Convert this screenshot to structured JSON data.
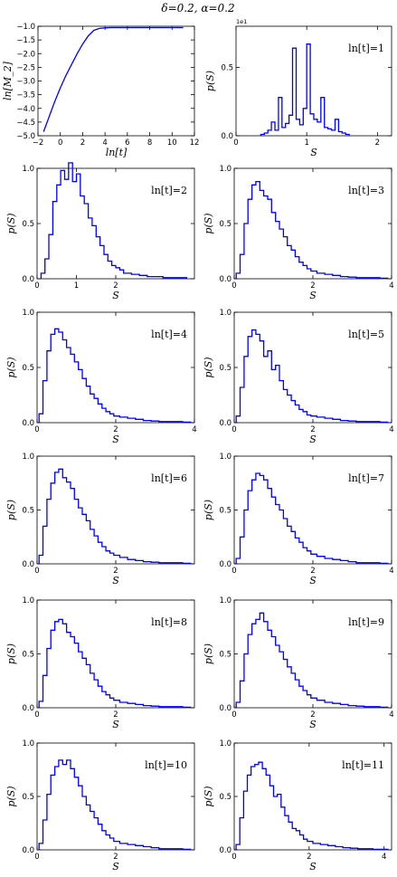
{
  "figure": {
    "title": "δ=0.2, α=0.2"
  },
  "chart_data": [
    {
      "id": "m2",
      "type": "line",
      "title": "",
      "xlabel": "ln[t]",
      "ylabel": "ln[M_2]",
      "xlim": [
        -2,
        12
      ],
      "ylim": [
        -5.0,
        -1.0
      ],
      "xticks": [
        -2,
        0,
        2,
        4,
        6,
        8,
        10,
        12
      ],
      "yticks": [
        -5.0,
        -4.5,
        -4.0,
        -3.5,
        -3.0,
        -2.5,
        -2.0,
        -1.5,
        -1.0
      ],
      "xtick_labels": [
        "−2",
        "0",
        "2",
        "4",
        "6",
        "8",
        "10",
        "12"
      ],
      "ytick_labels": [
        "−5.0",
        "−4.5",
        "−4.0",
        "−3.5",
        "−3.0",
        "−2.5",
        "−2.0",
        "−1.5",
        "−1.0"
      ],
      "series": [
        {
          "x": [
            -1.5,
            -1.0,
            -0.5,
            0.0,
            0.5,
            1.0,
            1.5,
            2.0,
            2.5,
            3.0,
            3.5,
            4.0,
            4.5,
            5.0,
            6.0,
            7.0,
            8.0,
            9.0,
            10.0,
            11.0
          ],
          "y": [
            -4.85,
            -4.3,
            -3.75,
            -3.25,
            -2.8,
            -2.4,
            -2.0,
            -1.65,
            -1.35,
            -1.15,
            -1.08,
            -1.06,
            -1.05,
            -1.05,
            -1.05,
            -1.05,
            -1.05,
            -1.05,
            -1.05,
            -1.05
          ]
        }
      ]
    },
    {
      "id": "t1",
      "type": "histogram",
      "annotation": "ln[t]=1",
      "xlabel": "S",
      "ylabel": "p(S)",
      "xlim": [
        0,
        2.2
      ],
      "ylim": [
        0,
        0.8
      ],
      "yscale_label": "1e1",
      "xticks": [
        0,
        1,
        2
      ],
      "xtick_labels": [
        "0",
        "1",
        "2"
      ],
      "yticks": [
        0.0,
        0.5
      ],
      "ytick_labels": [
        "0.0",
        "0.5"
      ],
      "bin_edges": [
        0.35,
        0.4,
        0.45,
        0.5,
        0.55,
        0.6,
        0.65,
        0.7,
        0.75,
        0.8,
        0.85,
        0.9,
        0.95,
        1.0,
        1.05,
        1.1,
        1.15,
        1.2,
        1.25,
        1.3,
        1.35,
        1.4,
        1.45,
        1.5,
        1.55,
        1.6
      ],
      "values": [
        0.01,
        0.02,
        0.04,
        0.1,
        0.04,
        0.28,
        0.06,
        0.09,
        0.15,
        0.64,
        0.12,
        0.08,
        0.2,
        0.67,
        0.16,
        0.12,
        0.1,
        0.28,
        0.06,
        0.05,
        0.04,
        0.12,
        0.03,
        0.02,
        0.01
      ]
    },
    {
      "id": "t2",
      "type": "histogram",
      "annotation": "ln[t]=2",
      "xlabel": "S",
      "ylabel": "p(S)",
      "xlim": [
        0,
        4.0
      ],
      "ylim": [
        0,
        1.0
      ],
      "xticks": [
        0,
        1,
        2
      ],
      "xtick_labels": [
        "0",
        "1",
        "2"
      ],
      "yticks": [
        0.0,
        0.5,
        1.0
      ],
      "ytick_labels": [
        "0.0",
        "0.5",
        "1.0"
      ],
      "bin_edges": [
        0.1,
        0.2,
        0.3,
        0.4,
        0.5,
        0.6,
        0.7,
        0.8,
        0.9,
        1.0,
        1.1,
        1.2,
        1.3,
        1.4,
        1.5,
        1.6,
        1.7,
        1.8,
        1.9,
        2.0,
        2.1,
        2.2,
        2.4,
        2.6,
        2.8,
        3.0,
        3.2,
        3.4,
        3.6,
        3.8
      ],
      "values": [
        0.05,
        0.18,
        0.4,
        0.7,
        0.85,
        0.98,
        0.9,
        1.05,
        0.88,
        0.95,
        0.75,
        0.68,
        0.55,
        0.48,
        0.38,
        0.3,
        0.22,
        0.16,
        0.12,
        0.1,
        0.08,
        0.05,
        0.04,
        0.03,
        0.02,
        0.02,
        0.01,
        0.01,
        0.01
      ]
    },
    {
      "id": "t3",
      "type": "histogram",
      "annotation": "ln[t]=3",
      "xlabel": "S",
      "ylabel": "p(S)",
      "xlim": [
        0,
        4.0
      ],
      "ylim": [
        0,
        1.0
      ],
      "xticks": [
        0,
        2,
        4
      ],
      "xtick_labels": [
        "0",
        "2",
        "4"
      ],
      "yticks": [
        0.0,
        0.5,
        1.0
      ],
      "ytick_labels": [
        "0.0",
        "0.5",
        "1.0"
      ],
      "bin_edges": [
        0.05,
        0.15,
        0.25,
        0.35,
        0.45,
        0.55,
        0.65,
        0.75,
        0.85,
        0.95,
        1.05,
        1.15,
        1.25,
        1.35,
        1.45,
        1.55,
        1.65,
        1.75,
        1.85,
        1.95,
        2.1,
        2.3,
        2.5,
        2.7,
        2.9,
        3.1,
        3.3,
        3.5,
        3.7,
        3.9
      ],
      "values": [
        0.05,
        0.22,
        0.5,
        0.72,
        0.85,
        0.88,
        0.8,
        0.75,
        0.72,
        0.6,
        0.52,
        0.45,
        0.38,
        0.3,
        0.26,
        0.2,
        0.15,
        0.12,
        0.09,
        0.07,
        0.05,
        0.04,
        0.03,
        0.02,
        0.015,
        0.01,
        0.01,
        0.01,
        0.005
      ]
    },
    {
      "id": "t4",
      "type": "histogram",
      "annotation": "ln[t]=4",
      "xlabel": "S",
      "ylabel": "p(S)",
      "xlim": [
        0,
        4.0
      ],
      "ylim": [
        0,
        1.0
      ],
      "xticks": [
        0,
        2,
        4
      ],
      "xtick_labels": [
        "0",
        "2",
        "4"
      ],
      "yticks": [
        0.0,
        0.5,
        1.0
      ],
      "ytick_labels": [
        "0.0",
        "0.5",
        "1.0"
      ],
      "bin_edges": [
        0.05,
        0.15,
        0.25,
        0.35,
        0.45,
        0.55,
        0.65,
        0.75,
        0.85,
        0.95,
        1.05,
        1.15,
        1.25,
        1.35,
        1.45,
        1.55,
        1.65,
        1.75,
        1.85,
        1.95,
        2.1,
        2.3,
        2.5,
        2.7,
        2.9,
        3.1,
        3.3,
        3.5,
        3.7,
        3.9
      ],
      "values": [
        0.08,
        0.38,
        0.65,
        0.8,
        0.85,
        0.82,
        0.75,
        0.68,
        0.62,
        0.55,
        0.48,
        0.4,
        0.33,
        0.26,
        0.22,
        0.17,
        0.13,
        0.1,
        0.08,
        0.06,
        0.05,
        0.04,
        0.03,
        0.02,
        0.015,
        0.01,
        0.01,
        0.01,
        0.005
      ]
    },
    {
      "id": "t5",
      "type": "histogram",
      "annotation": "ln[t]=5",
      "xlabel": "S",
      "ylabel": "p(S)",
      "xlim": [
        0,
        4.0
      ],
      "ylim": [
        0,
        1.0
      ],
      "xticks": [
        0,
        2,
        4
      ],
      "xtick_labels": [
        "0",
        "2",
        "4"
      ],
      "yticks": [
        0.0,
        0.5,
        1.0
      ],
      "ytick_labels": [
        "0.0",
        "0.5",
        "1.0"
      ],
      "bin_edges": [
        0.05,
        0.15,
        0.25,
        0.35,
        0.45,
        0.55,
        0.65,
        0.75,
        0.85,
        0.95,
        1.05,
        1.15,
        1.25,
        1.35,
        1.45,
        1.55,
        1.65,
        1.75,
        1.85,
        1.95,
        2.1,
        2.3,
        2.5,
        2.7,
        2.9,
        3.1,
        3.3,
        3.5,
        3.7,
        3.9
      ],
      "values": [
        0.06,
        0.32,
        0.6,
        0.78,
        0.84,
        0.8,
        0.74,
        0.6,
        0.65,
        0.48,
        0.52,
        0.38,
        0.3,
        0.25,
        0.2,
        0.16,
        0.12,
        0.1,
        0.07,
        0.06,
        0.05,
        0.04,
        0.03,
        0.02,
        0.015,
        0.01,
        0.01,
        0.01,
        0.005
      ]
    },
    {
      "id": "t6",
      "type": "histogram",
      "annotation": "ln[t]=6",
      "xlabel": "S",
      "ylabel": "p(S)",
      "xlim": [
        0,
        4.0
      ],
      "ylim": [
        0,
        1.0
      ],
      "xticks": [
        0,
        2
      ],
      "xtick_labels": [
        "0",
        "2"
      ],
      "yticks": [
        0.0,
        0.5,
        1.0
      ],
      "ytick_labels": [
        "0.0",
        "0.5",
        "1.0"
      ],
      "bin_edges": [
        0.05,
        0.15,
        0.25,
        0.35,
        0.45,
        0.55,
        0.65,
        0.75,
        0.85,
        0.95,
        1.05,
        1.15,
        1.25,
        1.35,
        1.45,
        1.55,
        1.65,
        1.75,
        1.85,
        1.95,
        2.1,
        2.3,
        2.5,
        2.7,
        2.9,
        3.1,
        3.3,
        3.5,
        3.7,
        3.9
      ],
      "values": [
        0.08,
        0.35,
        0.6,
        0.75,
        0.85,
        0.88,
        0.8,
        0.76,
        0.7,
        0.6,
        0.52,
        0.46,
        0.4,
        0.32,
        0.26,
        0.2,
        0.16,
        0.12,
        0.1,
        0.08,
        0.06,
        0.04,
        0.03,
        0.02,
        0.015,
        0.01,
        0.01,
        0.01,
        0.005
      ]
    },
    {
      "id": "t7",
      "type": "histogram",
      "annotation": "ln[t]=7",
      "xlabel": "S",
      "ylabel": "p(S)",
      "xlim": [
        0,
        4.0
      ],
      "ylim": [
        0,
        1.0
      ],
      "xticks": [
        0,
        2,
        4
      ],
      "xtick_labels": [
        "0",
        "2",
        "4"
      ],
      "yticks": [
        0.0,
        0.5,
        1.0
      ],
      "ytick_labels": [
        "0.0",
        "0.5",
        "1.0"
      ],
      "bin_edges": [
        0.05,
        0.15,
        0.25,
        0.35,
        0.45,
        0.55,
        0.65,
        0.75,
        0.85,
        0.95,
        1.05,
        1.15,
        1.25,
        1.35,
        1.45,
        1.55,
        1.65,
        1.75,
        1.85,
        1.95,
        2.1,
        2.3,
        2.5,
        2.7,
        2.9,
        3.1,
        3.3,
        3.5,
        3.7,
        3.9
      ],
      "values": [
        0.05,
        0.25,
        0.5,
        0.68,
        0.78,
        0.84,
        0.82,
        0.78,
        0.7,
        0.62,
        0.55,
        0.5,
        0.42,
        0.35,
        0.3,
        0.24,
        0.2,
        0.15,
        0.12,
        0.09,
        0.07,
        0.05,
        0.04,
        0.03,
        0.02,
        0.01,
        0.01,
        0.01,
        0.005
      ]
    },
    {
      "id": "t8",
      "type": "histogram",
      "annotation": "ln[t]=8",
      "xlabel": "S",
      "ylabel": "p(S)",
      "xlim": [
        0,
        4.0
      ],
      "ylim": [
        0,
        1.0
      ],
      "xticks": [
        0,
        2
      ],
      "xtick_labels": [
        "0",
        "2"
      ],
      "yticks": [
        0.0,
        0.5,
        1.0
      ],
      "ytick_labels": [
        "0.0",
        "0.5",
        "1.0"
      ],
      "bin_edges": [
        0.05,
        0.15,
        0.25,
        0.35,
        0.45,
        0.55,
        0.65,
        0.75,
        0.85,
        0.95,
        1.05,
        1.15,
        1.25,
        1.35,
        1.45,
        1.55,
        1.65,
        1.75,
        1.85,
        1.95,
        2.1,
        2.3,
        2.5,
        2.7,
        2.9,
        3.1,
        3.3,
        3.5,
        3.7,
        3.9
      ],
      "values": [
        0.06,
        0.3,
        0.55,
        0.72,
        0.8,
        0.82,
        0.78,
        0.7,
        0.66,
        0.6,
        0.52,
        0.46,
        0.4,
        0.32,
        0.26,
        0.2,
        0.15,
        0.12,
        0.09,
        0.07,
        0.05,
        0.04,
        0.03,
        0.02,
        0.015,
        0.01,
        0.01,
        0.01,
        0.005
      ]
    },
    {
      "id": "t9",
      "type": "histogram",
      "annotation": "ln[t]=9",
      "xlabel": "S",
      "ylabel": "p(S)",
      "xlim": [
        0,
        4.0
      ],
      "ylim": [
        0,
        1.0
      ],
      "xticks": [
        0,
        2,
        4
      ],
      "xtick_labels": [
        "0",
        "2",
        "4"
      ],
      "yticks": [
        0.0,
        0.5,
        1.0
      ],
      "ytick_labels": [
        "0.0",
        "0.5",
        "1.0"
      ],
      "bin_edges": [
        0.05,
        0.15,
        0.25,
        0.35,
        0.45,
        0.55,
        0.65,
        0.75,
        0.85,
        0.95,
        1.05,
        1.15,
        1.25,
        1.35,
        1.45,
        1.55,
        1.65,
        1.75,
        1.85,
        1.95,
        2.1,
        2.3,
        2.5,
        2.7,
        2.9,
        3.1,
        3.3,
        3.5,
        3.7,
        3.9
      ],
      "values": [
        0.05,
        0.25,
        0.5,
        0.68,
        0.78,
        0.82,
        0.88,
        0.8,
        0.72,
        0.66,
        0.58,
        0.52,
        0.45,
        0.38,
        0.32,
        0.26,
        0.2,
        0.16,
        0.12,
        0.09,
        0.07,
        0.05,
        0.04,
        0.03,
        0.02,
        0.015,
        0.01,
        0.01,
        0.005
      ]
    },
    {
      "id": "t10",
      "type": "histogram",
      "annotation": "ln[t]=10",
      "xlabel": "S",
      "ylabel": "p(S)",
      "xlim": [
        0,
        4.0
      ],
      "ylim": [
        0,
        1.0
      ],
      "xticks": [
        0,
        2
      ],
      "xtick_labels": [
        "0",
        "2"
      ],
      "yticks": [
        0.0,
        0.5,
        1.0
      ],
      "ytick_labels": [
        "0.0",
        "0.5",
        "1.0"
      ],
      "bin_edges": [
        0.05,
        0.15,
        0.25,
        0.35,
        0.45,
        0.55,
        0.65,
        0.75,
        0.85,
        0.95,
        1.05,
        1.15,
        1.25,
        1.35,
        1.45,
        1.55,
        1.65,
        1.75,
        1.85,
        1.95,
        2.1,
        2.3,
        2.5,
        2.7,
        2.9,
        3.1,
        3.3,
        3.5,
        3.7,
        3.9
      ],
      "values": [
        0.06,
        0.28,
        0.52,
        0.7,
        0.78,
        0.84,
        0.8,
        0.84,
        0.76,
        0.68,
        0.6,
        0.5,
        0.42,
        0.36,
        0.3,
        0.24,
        0.18,
        0.14,
        0.11,
        0.08,
        0.06,
        0.05,
        0.04,
        0.03,
        0.02,
        0.01,
        0.01,
        0.01,
        0.005
      ]
    },
    {
      "id": "t11",
      "type": "histogram",
      "annotation": "ln[t]=11",
      "xlabel": "S",
      "ylabel": "p(S)",
      "xlim": [
        0,
        4.2
      ],
      "ylim": [
        0,
        1.0
      ],
      "xticks": [
        0,
        2,
        4
      ],
      "xtick_labels": [
        "0",
        "2",
        "4"
      ],
      "yticks": [
        0.0,
        0.5,
        1.0
      ],
      "ytick_labels": [
        "0.0",
        "0.5",
        "1.0"
      ],
      "bin_edges": [
        0.05,
        0.15,
        0.25,
        0.35,
        0.45,
        0.55,
        0.65,
        0.75,
        0.85,
        0.95,
        1.05,
        1.15,
        1.25,
        1.35,
        1.45,
        1.55,
        1.65,
        1.75,
        1.85,
        1.95,
        2.1,
        2.3,
        2.5,
        2.7,
        2.9,
        3.1,
        3.3,
        3.5,
        3.7,
        3.9,
        4.1
      ],
      "values": [
        0.05,
        0.3,
        0.55,
        0.7,
        0.78,
        0.8,
        0.82,
        0.76,
        0.7,
        0.6,
        0.5,
        0.52,
        0.4,
        0.32,
        0.26,
        0.2,
        0.18,
        0.14,
        0.1,
        0.08,
        0.06,
        0.05,
        0.04,
        0.03,
        0.02,
        0.015,
        0.01,
        0.01,
        0.005,
        0.005
      ]
    }
  ]
}
